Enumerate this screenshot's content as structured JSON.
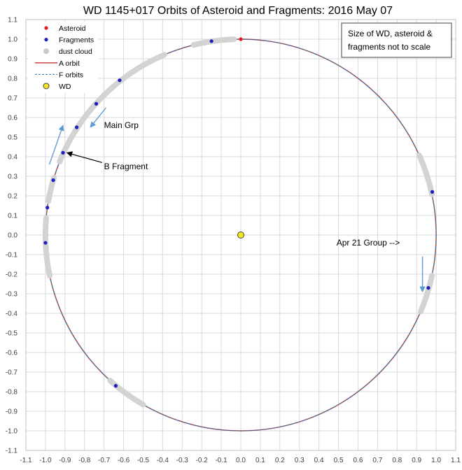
{
  "chart_data": {
    "type": "scatter",
    "title": "WD 1145+017 Orbits of Asteroid and Fragments: 2016 May 07",
    "xlim": [
      -1.1,
      1.1
    ],
    "ylim": [
      -1.1,
      1.1
    ],
    "xticks": [
      "-1.1",
      "-1.0",
      "-0.9",
      "-0.8",
      "-0.7",
      "-0.6",
      "-0.5",
      "-0.4",
      "-0.3",
      "-0.2",
      "-0.1",
      "0.0",
      "0.1",
      "0.2",
      "0.3",
      "0.4",
      "0.5",
      "0.6",
      "0.7",
      "0.8",
      "0.9",
      "1.0",
      "1.1"
    ],
    "yticks": [
      "1.1",
      "1.0",
      "0.9",
      "0.8",
      "0.7",
      "0.6",
      "0.5",
      "0.4",
      "0.3",
      "0.2",
      "0.1",
      "0.0",
      "-0.1",
      "-0.2",
      "-0.3",
      "-0.4",
      "-0.5",
      "-0.6",
      "-0.7",
      "-0.8",
      "-0.9",
      "-1.0",
      "-1.1"
    ],
    "grid": true,
    "legend_position": "top-left",
    "legend": [
      {
        "label": "Asteroid",
        "marker": "dot",
        "color": "#e31a1c"
      },
      {
        "label": "Fragments",
        "marker": "dot",
        "color": "#1f1fbf"
      },
      {
        "label": "dust cloud",
        "marker": "dot",
        "color": "#c8c8c8"
      },
      {
        "label": "A orbit",
        "marker": "line",
        "color": "#c0392b"
      },
      {
        "label": "F orbits",
        "marker": "dash",
        "color": "#2e75b6"
      },
      {
        "label": "WD",
        "marker": "dot",
        "color": "#f5e61e"
      }
    ],
    "asteroid": [
      {
        "x": 0.0,
        "y": 1.0
      }
    ],
    "fragments": [
      {
        "x": -0.15,
        "y": 0.99
      },
      {
        "x": -0.62,
        "y": 0.79
      },
      {
        "x": -0.74,
        "y": 0.67
      },
      {
        "x": -0.84,
        "y": 0.55
      },
      {
        "x": -0.91,
        "y": 0.42
      },
      {
        "x": -0.96,
        "y": 0.28
      },
      {
        "x": -0.99,
        "y": 0.14
      },
      {
        "x": -1.0,
        "y": -0.04
      },
      {
        "x": 0.98,
        "y": 0.22
      },
      {
        "x": 0.96,
        "y": -0.27
      },
      {
        "x": -0.64,
        "y": -0.77
      }
    ],
    "dust_arcs_deg": [
      [
        92,
        104
      ],
      [
        113,
        158
      ],
      [
        163,
        170
      ],
      [
        175,
        192
      ],
      [
        -23,
        -12
      ],
      [
        12,
        24
      ],
      [
        -132,
        -120
      ]
    ],
    "wd": {
      "x": 0.0,
      "y": 0.0
    },
    "orbit_radius": 1.0,
    "annotations": [
      {
        "text": "Main Grp",
        "x": -0.7,
        "y": 0.56
      },
      {
        "text": "B Fragment",
        "x": -0.7,
        "y": 0.35
      },
      {
        "text": "Apr 21 Group  -->",
        "x": 0.49,
        "y": -0.04
      }
    ],
    "note": [
      "Size of WD, asteroid &",
      "fragments not to scale"
    ]
  }
}
